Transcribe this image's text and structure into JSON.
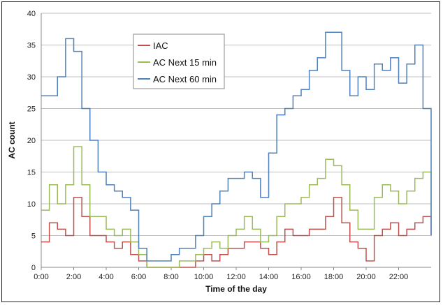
{
  "chart_data": {
    "type": "line",
    "xlabel": "Time of the day",
    "ylabel": "AC count",
    "xlim": [
      0,
      24
    ],
    "ylim": [
      0,
      40
    ],
    "x_ticks": [
      {
        "value": 0,
        "label": "0:00"
      },
      {
        "value": 2,
        "label": "2:00"
      },
      {
        "value": 4,
        "label": "4:00"
      },
      {
        "value": 6,
        "label": "6:00"
      },
      {
        "value": 8,
        "label": "8:00"
      },
      {
        "value": 10,
        "label": "10:00"
      },
      {
        "value": 12,
        "label": "12:00"
      },
      {
        "value": 14,
        "label": "14:00"
      },
      {
        "value": 16,
        "label": "16:00"
      },
      {
        "value": 18,
        "label": "18:00"
      },
      {
        "value": 20,
        "label": "20:00"
      },
      {
        "value": 22,
        "label": "22:00"
      }
    ],
    "y_ticks": [
      0,
      5,
      10,
      15,
      20,
      25,
      30,
      35,
      40
    ],
    "grid": "horizontal",
    "legend_position": "top-center",
    "series": [
      {
        "name": "IAC",
        "color": "#c0504d",
        "x": [
          0,
          0.5,
          1,
          1.5,
          2,
          2.5,
          3,
          3.5,
          4,
          4.5,
          5,
          5.5,
          6,
          6.5,
          7,
          7.5,
          8,
          8.5,
          9,
          9.5,
          10,
          10.5,
          11,
          11.5,
          12,
          12.5,
          13,
          13.5,
          14,
          14.5,
          15,
          15.5,
          16,
          16.5,
          17,
          17.5,
          18,
          18.5,
          19,
          19.5,
          20,
          20.5,
          21,
          21.5,
          22,
          22.5,
          23,
          23.5,
          24
        ],
        "y": [
          4,
          7,
          6,
          5,
          11,
          8,
          5,
          5,
          4,
          3,
          4,
          2,
          1,
          0,
          0,
          0,
          0,
          0,
          0,
          1,
          2,
          1,
          2,
          3,
          3,
          4,
          4,
          3,
          2,
          4,
          6,
          5,
          5,
          6,
          6,
          8,
          11,
          7,
          4,
          3,
          1,
          5,
          6,
          7,
          5,
          6,
          7,
          8,
          5
        ]
      },
      {
        "name": "AC Next 15 min",
        "color": "#9bbb59",
        "x": [
          0,
          0.5,
          1,
          1.5,
          2,
          2.5,
          3,
          3.5,
          4,
          4.5,
          5,
          5.5,
          6,
          6.5,
          7,
          7.5,
          8,
          8.5,
          9,
          9.5,
          10,
          10.5,
          11,
          11.5,
          12,
          12.5,
          13,
          13.5,
          14,
          14.5,
          15,
          15.5,
          16,
          16.5,
          17,
          17.5,
          18,
          18.5,
          19,
          19.5,
          20,
          20.5,
          21,
          21.5,
          22,
          22.5,
          23,
          23.5,
          24
        ],
        "y": [
          9,
          13,
          10,
          13,
          19,
          13,
          8,
          8,
          6,
          5,
          6,
          4,
          2,
          0,
          0,
          0,
          0,
          1,
          1,
          2,
          3,
          4,
          3,
          5,
          6,
          8,
          6,
          4,
          5,
          8,
          10,
          10,
          11,
          13,
          14,
          17,
          16,
          13,
          9,
          6,
          6,
          11,
          13,
          12,
          10,
          12,
          14,
          15,
          8
        ]
      },
      {
        "name": "AC Next 60 min",
        "color": "#4f81bd",
        "x": [
          0,
          0.5,
          1,
          1.5,
          2,
          2.5,
          3,
          3.5,
          4,
          4.5,
          5,
          5.5,
          6,
          6.5,
          7,
          7.5,
          8,
          8.5,
          9,
          9.5,
          10,
          10.5,
          11,
          11.5,
          12,
          12.5,
          13,
          13.5,
          14,
          14.5,
          15,
          15.5,
          16,
          16.5,
          17,
          17.5,
          18,
          18.5,
          19,
          19.5,
          20,
          20.5,
          21,
          21.5,
          22,
          22.5,
          23,
          23.5,
          24
        ],
        "y": [
          27,
          27,
          30,
          36,
          34,
          25,
          20,
          15,
          13,
          12,
          11,
          9,
          3,
          1,
          1,
          1,
          2,
          3,
          3,
          5,
          8,
          10,
          12,
          14,
          14,
          15,
          14,
          11,
          18,
          24,
          25,
          27,
          28,
          31,
          33,
          37,
          37,
          31,
          27,
          30,
          28,
          32,
          31,
          33,
          29,
          32,
          35,
          25,
          5
        ]
      }
    ]
  }
}
